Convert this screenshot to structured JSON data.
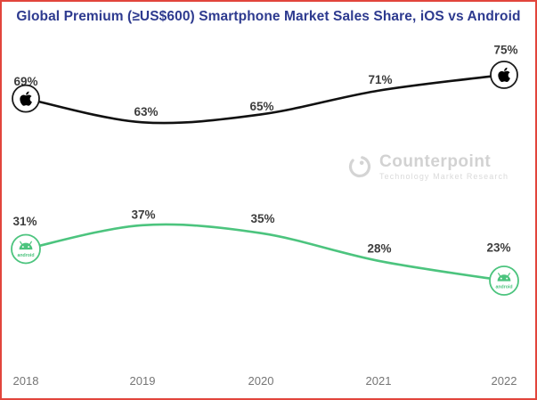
{
  "title": "Global Premium (≥US$600) Smartphone Market Sales Share, iOS vs Android",
  "watermark": {
    "brand": "Counterpoint",
    "tagline": "Technology Market Research"
  },
  "icons": {
    "ios_endpoint": "apple-logo",
    "android_endpoint": "android-logo",
    "android_icon_text": "android"
  },
  "colors": {
    "title": "#2d3a8f",
    "frame_border": "#e2453c",
    "ios_line": "#111111",
    "android_line": "#4cc47e",
    "value_label": "#3d3d3d",
    "axis_label": "#757575",
    "watermark_gray": "#d4d4d4"
  },
  "chart_data": {
    "type": "line",
    "categories": [
      "2018",
      "2019",
      "2020",
      "2021",
      "2022"
    ],
    "series": [
      {
        "name": "iOS",
        "values": [
          69,
          63,
          65,
          71,
          75
        ],
        "labels": [
          "69%",
          "63%",
          "65%",
          "71%",
          "75%"
        ],
        "color": "#111111",
        "endpoint_icon": "apple-logo"
      },
      {
        "name": "Android",
        "values": [
          31,
          37,
          35,
          28,
          23
        ],
        "labels": [
          "31%",
          "37%",
          "35%",
          "28%",
          "23%"
        ],
        "color": "#4cc47e",
        "endpoint_icon": "android-logo"
      }
    ],
    "title": "Global Premium (≥US$600) Smartphone Market Sales Share, iOS vs Android",
    "xlabel": "",
    "ylabel": "",
    "unit": "%",
    "ylim": [
      0,
      100
    ],
    "grid": false,
    "legend": "none (brand icons at line endpoints)"
  }
}
